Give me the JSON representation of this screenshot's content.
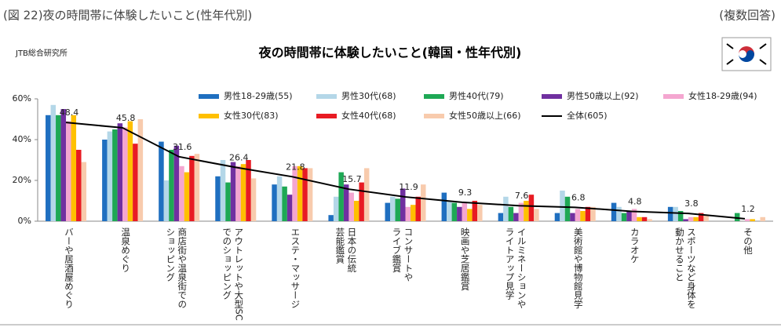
{
  "chart_data": {
    "type": "bar",
    "figure_label": "(図 22)夜の時間帯に体験したいこと(性年代別)",
    "note": "(複数回答)",
    "source": "JTB総合研究所",
    "title": "夜の時間帯に体験したいこと(韓国・性年代別)",
    "categories": [
      [
        "バーや居酒屋めぐり"
      ],
      [
        "温泉めぐり"
      ],
      [
        "商店街や温泉街での",
        "ショッピング"
      ],
      [
        "アウトレットや大型SC",
        "でのショッピング"
      ],
      [
        "エステ・マッサージ"
      ],
      [
        "日本の伝統",
        "芸能鑑賞"
      ],
      [
        "コンサートや",
        "ライブ鑑賞"
      ],
      [
        "映画や芝居鑑賞"
      ],
      [
        "イルミネーションや",
        "ライトアップ見学"
      ],
      [
        "美術館や博物館見学"
      ],
      [
        "カラオケ"
      ],
      [
        "スポーツなど身体を",
        "動かせること"
      ],
      [
        "その他"
      ]
    ],
    "series": [
      {
        "name": "男性18-29歳(55)",
        "color": "#1f6fc0",
        "values": [
          52,
          40,
          39,
          22,
          18,
          3,
          9,
          14,
          4,
          4,
          9,
          7,
          0
        ]
      },
      {
        "name": "男性30代(68)",
        "color": "#b4d7e8",
        "values": [
          57,
          44,
          20,
          30,
          22,
          12,
          12,
          10,
          12,
          15,
          7,
          7,
          0
        ]
      },
      {
        "name": "男性40代(79)",
        "color": "#1ea855",
        "values": [
          52,
          45,
          35,
          19,
          17,
          24,
          11,
          9,
          7,
          12,
          4,
          5,
          4
        ]
      },
      {
        "name": "男性50歳以上(92)",
        "color": "#7030a0",
        "values": [
          55,
          48,
          37,
          29,
          13,
          18,
          16,
          7,
          4,
          4,
          5,
          1,
          0
        ]
      },
      {
        "name": "女性18-29歳(94)",
        "color": "#f4a6d0",
        "values": [
          49,
          46,
          27,
          27,
          27,
          14,
          7,
          9,
          9,
          6,
          6,
          2,
          1
        ]
      },
      {
        "name": "女性30代(83)",
        "color": "#ffc000",
        "values": [
          52,
          49,
          24,
          28,
          27,
          10,
          8,
          6,
          10,
          5,
          2,
          2,
          1
        ]
      },
      {
        "name": "女性40代(68)",
        "color": "#e81b23",
        "values": [
          35,
          38,
          32,
          30,
          26,
          19,
          12,
          10,
          13,
          7,
          2,
          4,
          0
        ]
      },
      {
        "name": "女性50歳以上(66)",
        "color": "#f8cbad",
        "values": [
          29,
          50,
          33,
          21,
          26,
          26,
          18,
          8,
          6,
          7,
          1,
          3,
          2
        ]
      },
      {
        "name": "全体(605)",
        "color": "#000000",
        "type": "line",
        "values": [
          48.4,
          45.8,
          31.6,
          26.4,
          21.8,
          15.7,
          11.9,
          9.3,
          7.6,
          6.8,
          4.8,
          3.8,
          1.2
        ]
      }
    ],
    "ylim": [
      0,
      60
    ],
    "yticks": [
      {
        "value": 0,
        "label": "0%"
      },
      {
        "value": 20,
        "label": "20%"
      },
      {
        "value": 40,
        "label": "40%"
      },
      {
        "value": 60,
        "label": "60%"
      }
    ],
    "grid": false
  }
}
